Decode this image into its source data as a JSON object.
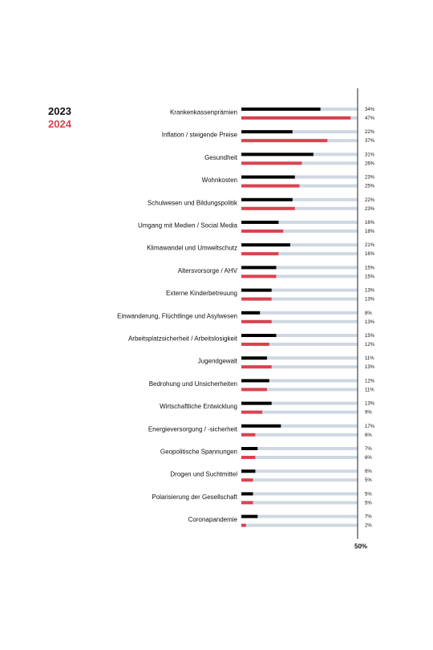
{
  "chart_data": {
    "type": "bar",
    "orientation": "horizontal",
    "categories": [
      "Krankenkassenprämien",
      "Inflation / steigende Preise",
      "Gesundheit",
      "Wohnkosten",
      "Schulwesen und Bildungspolitik",
      "Umgang mit Medien / Social Media",
      "Klimawandel und Umweltschutz",
      "Altersvorsorge / AHV",
      "Externe Kinderbetreuung",
      "Einwanderung, Flüchtlinge und Asylwesen",
      "Arbeitsplatzsicherheit / Arbeitslosigkeit",
      "Jugendgewalt",
      "Bedrohung und Unsicherheiten",
      "Wirtschaftliche Entwicklung",
      "Energieversorgung / -sicherheit",
      "Geopolitische Spannungen",
      "Drogen und Suchtmittel",
      "Polarisierung der Gesellschaft",
      "Coronapandemie"
    ],
    "series": [
      {
        "name": "2023",
        "color": "#000000",
        "values": [
          34,
          22,
          31,
          23,
          22,
          16,
          21,
          15,
          13,
          8,
          15,
          11,
          12,
          13,
          17,
          7,
          6,
          5,
          7
        ],
        "labels": [
          "34%",
          "22%",
          "31%",
          "23%",
          "22%",
          "16%",
          "21%",
          "15%",
          "13%",
          "8%",
          "15%",
          "11%",
          "12%",
          "13%",
          "17%",
          "7%",
          "6%",
          "5%",
          "7%"
        ]
      },
      {
        "name": "2024",
        "color": "#d9434f",
        "values": [
          47,
          37,
          26,
          25,
          23,
          18,
          16,
          15,
          13,
          13,
          12,
          13,
          11,
          9,
          6,
          6,
          5,
          5,
          2
        ],
        "labels": [
          "47%",
          "37%",
          "26%",
          "25%",
          "23%",
          "18%",
          "16%",
          "15%",
          "13%",
          "13%",
          "12%",
          "13%",
          "11%",
          "9%",
          "6%",
          "6%",
          "5%",
          "5%",
          "2%"
        ]
      }
    ],
    "xlim": [
      0,
      50
    ],
    "axis_label": "50%",
    "track_color": "#cfd8e2",
    "grid": false,
    "legend": "top-left"
  }
}
